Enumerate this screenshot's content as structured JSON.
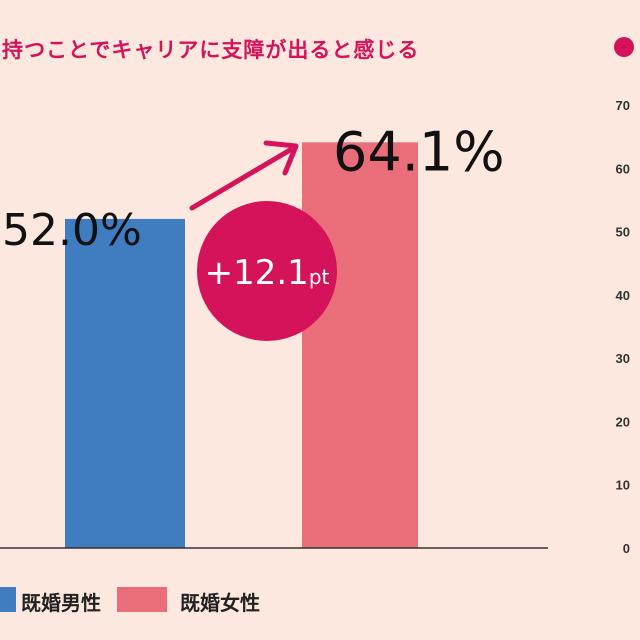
{
  "chart_data": {
    "type": "bar",
    "title": "持つことでキャリアに支障が出ると感じる",
    "categories": [
      "既婚男性",
      "既婚女性"
    ],
    "values": [
      52.0,
      64.1
    ],
    "value_labels": [
      "52.0%",
      "64.1%"
    ],
    "colors": [
      "#3f7cc0",
      "#ea6e7a"
    ],
    "ylim": [
      0,
      70
    ],
    "yticks": [
      "0",
      "10",
      "20",
      "30",
      "40",
      "50",
      "60",
      "70"
    ],
    "annotation": {
      "text": "+12.1",
      "unit": "pt",
      "color": "#d4135a"
    },
    "legend": {
      "placement": "bottom",
      "items": [
        "既婚男性",
        "既婚女性"
      ]
    },
    "accent_color": "#d4135a",
    "grid": false
  }
}
